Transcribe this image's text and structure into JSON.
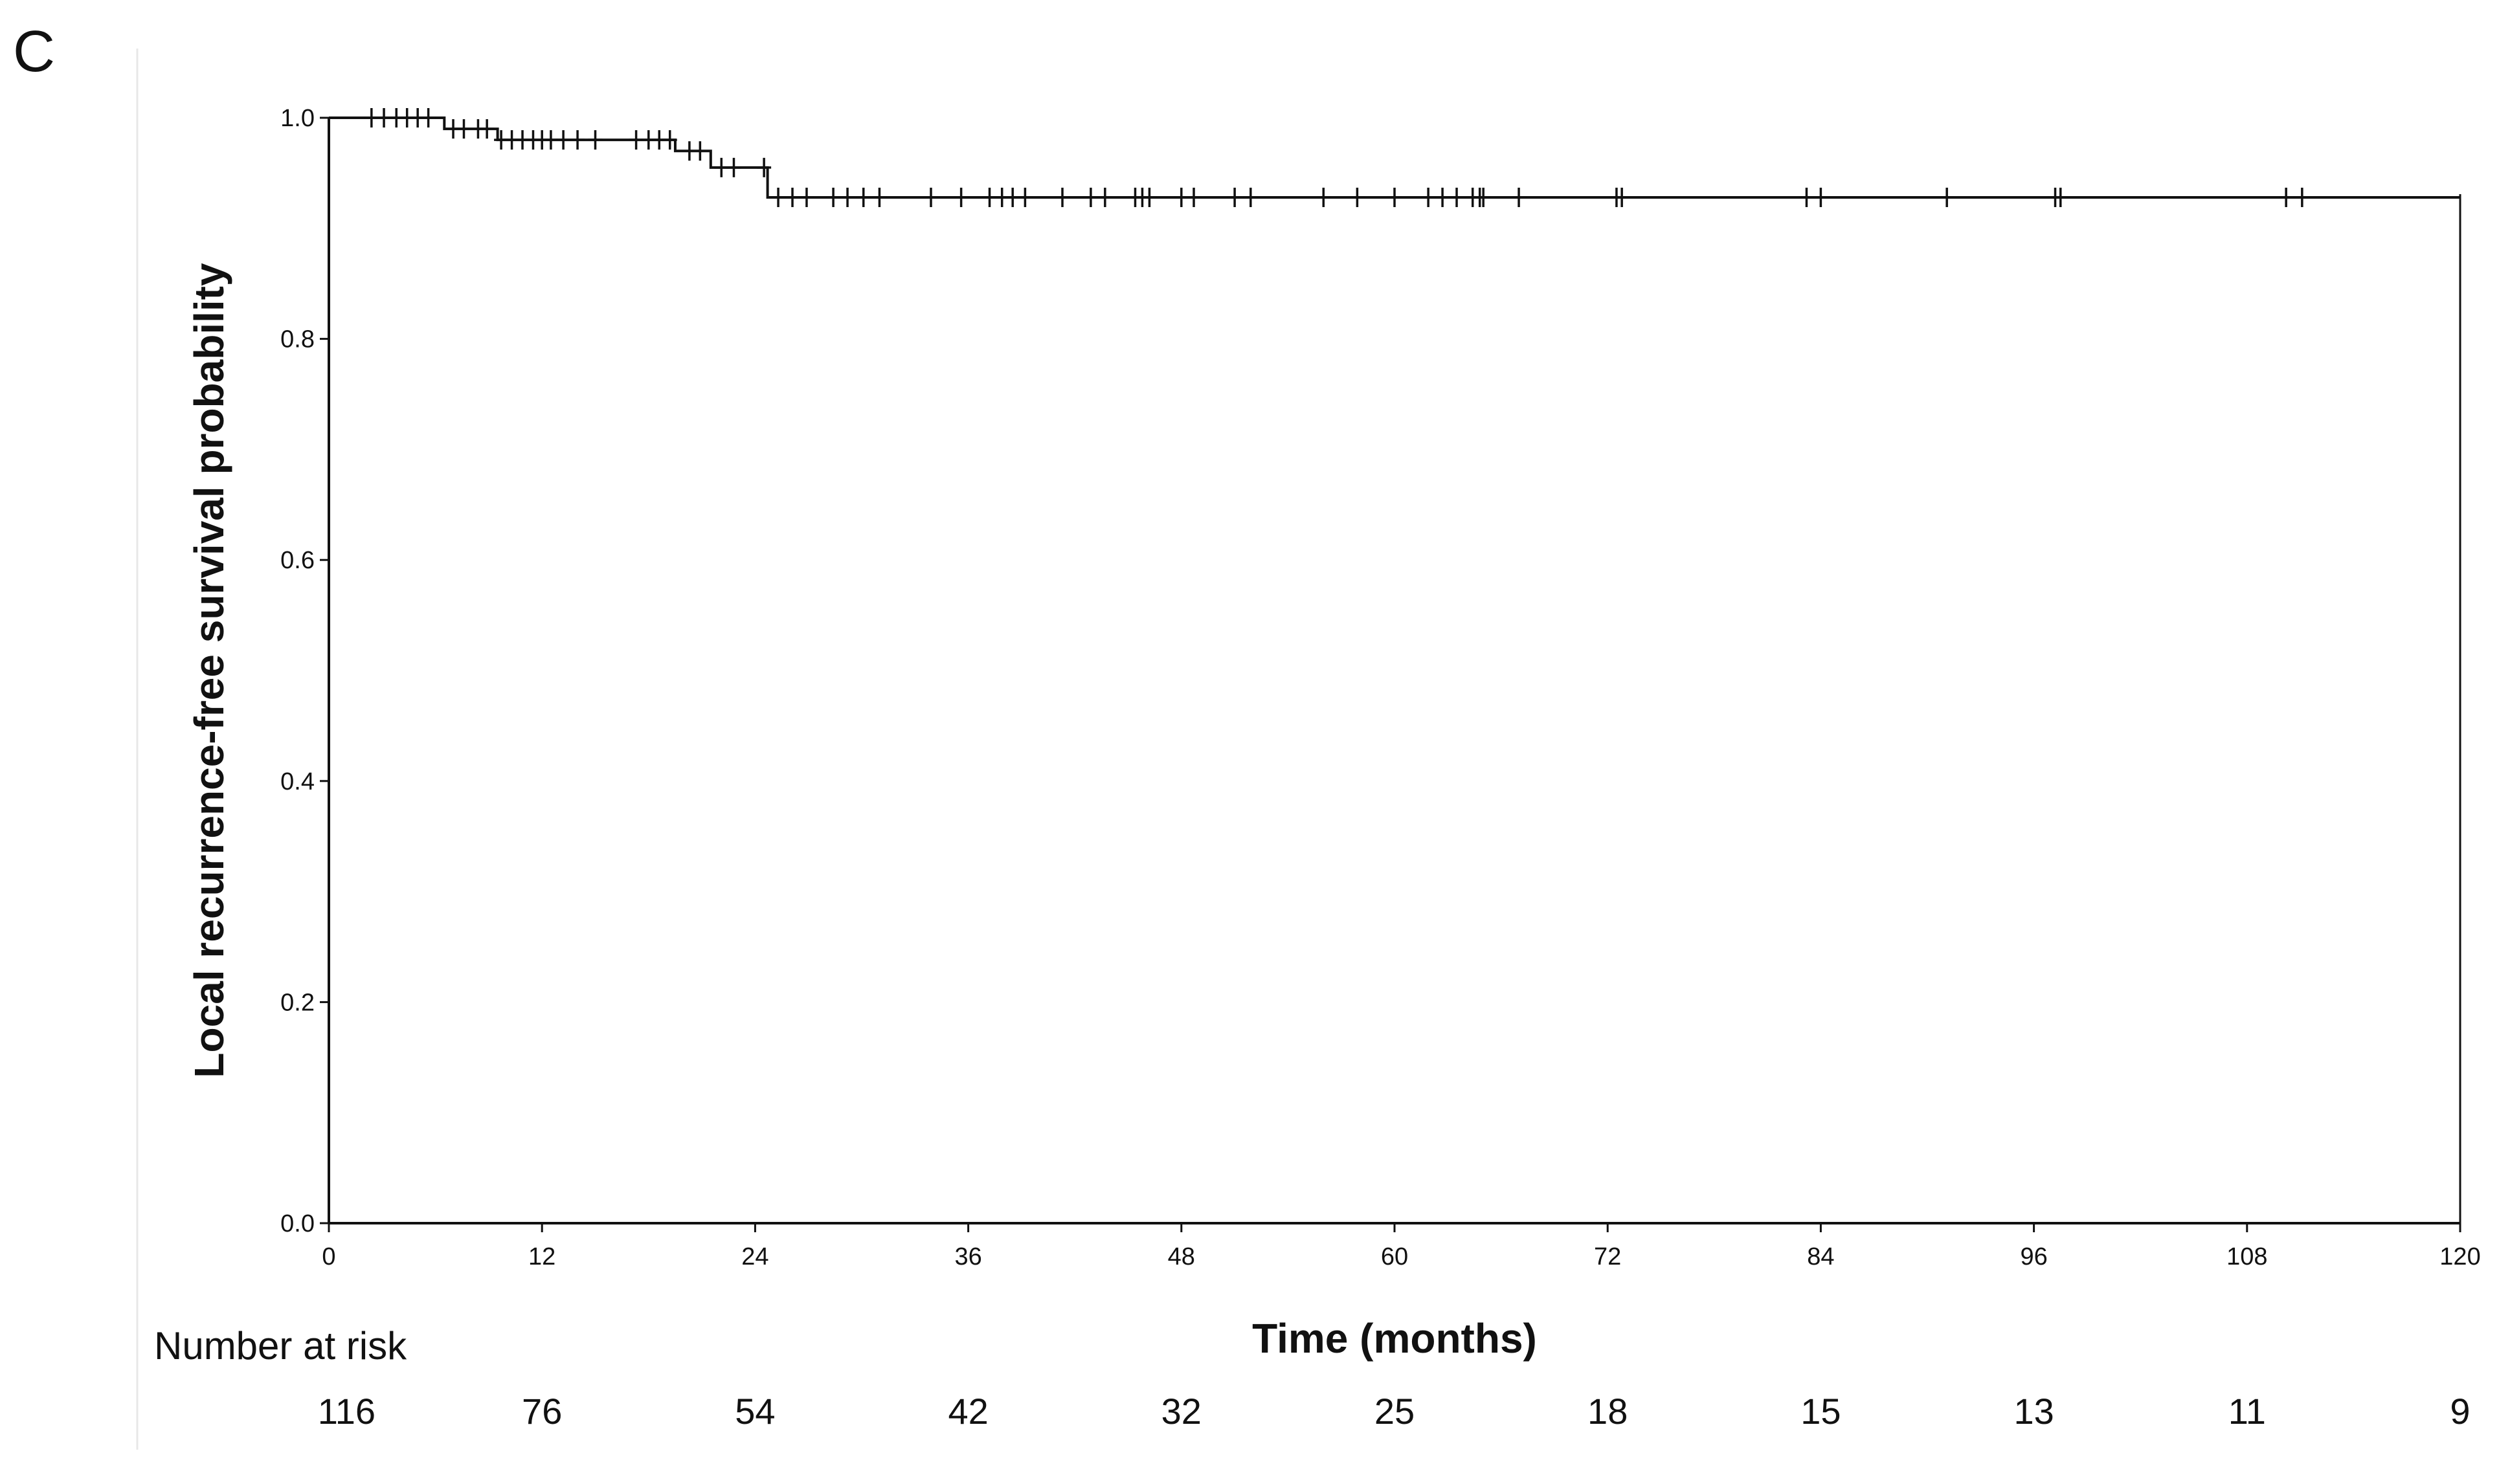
{
  "panel_label": "C",
  "number_at_risk_label": "Number at risk",
  "chart_data": {
    "type": "line",
    "xlabel": "Time (months)",
    "ylabel": "Local recurrence-free survival probability",
    "xlim": [
      0,
      120
    ],
    "ylim": [
      0,
      1.0
    ],
    "xticks": [
      0,
      12,
      24,
      36,
      48,
      60,
      72,
      84,
      96,
      108,
      120
    ],
    "yticks": [
      0.0,
      0.2,
      0.4,
      0.6,
      0.8,
      1.0
    ],
    "xtick_labels": [
      "0",
      "12",
      "24",
      "36",
      "48",
      "60",
      "72",
      "84",
      "96",
      "108",
      "120"
    ],
    "ytick_labels": [
      "0.0",
      "0.2",
      "0.4",
      "0.6",
      "0.8",
      "1.0"
    ],
    "grid": false,
    "series": [
      {
        "steps": [
          [
            0,
            1.0
          ],
          [
            6.5,
            0.99
          ],
          [
            9.5,
            0.98
          ],
          [
            19.5,
            0.97
          ],
          [
            21.5,
            0.955
          ],
          [
            24.7,
            0.928
          ],
          [
            120,
            0.928
          ]
        ],
        "censored": [
          2.4,
          3.1,
          3.8,
          4.4,
          5.0,
          5.6,
          7.0,
          7.6,
          8.4,
          8.9,
          9.7,
          10.3,
          10.9,
          11.5,
          12.0,
          12.5,
          13.2,
          14.0,
          15.0,
          17.3,
          18.0,
          18.6,
          19.2,
          20.3,
          20.9,
          22.1,
          22.8,
          24.5,
          25.3,
          26.1,
          26.9,
          28.4,
          29.2,
          30.1,
          31.0,
          33.9,
          35.6,
          37.2,
          37.9,
          38.5,
          39.2,
          41.3,
          42.9,
          43.7,
          45.4,
          45.8,
          46.2,
          48.0,
          48.7,
          51.0,
          51.9,
          56.0,
          57.9,
          60.0,
          61.9,
          62.7,
          63.5,
          64.4,
          64.8,
          65.0,
          67.0,
          72.5,
          72.8,
          83.2,
          84.0,
          91.1,
          97.2,
          97.5,
          110.2,
          111.1
        ]
      }
    ],
    "risk_times": [
      1,
      12,
      24,
      36,
      48,
      60,
      72,
      84,
      96,
      108,
      120
    ],
    "number_at_risk": [
      "116",
      "76",
      "54",
      "42",
      "32",
      "25",
      "18",
      "15",
      "13",
      "11",
      "9"
    ],
    "line_color": "#111111"
  }
}
